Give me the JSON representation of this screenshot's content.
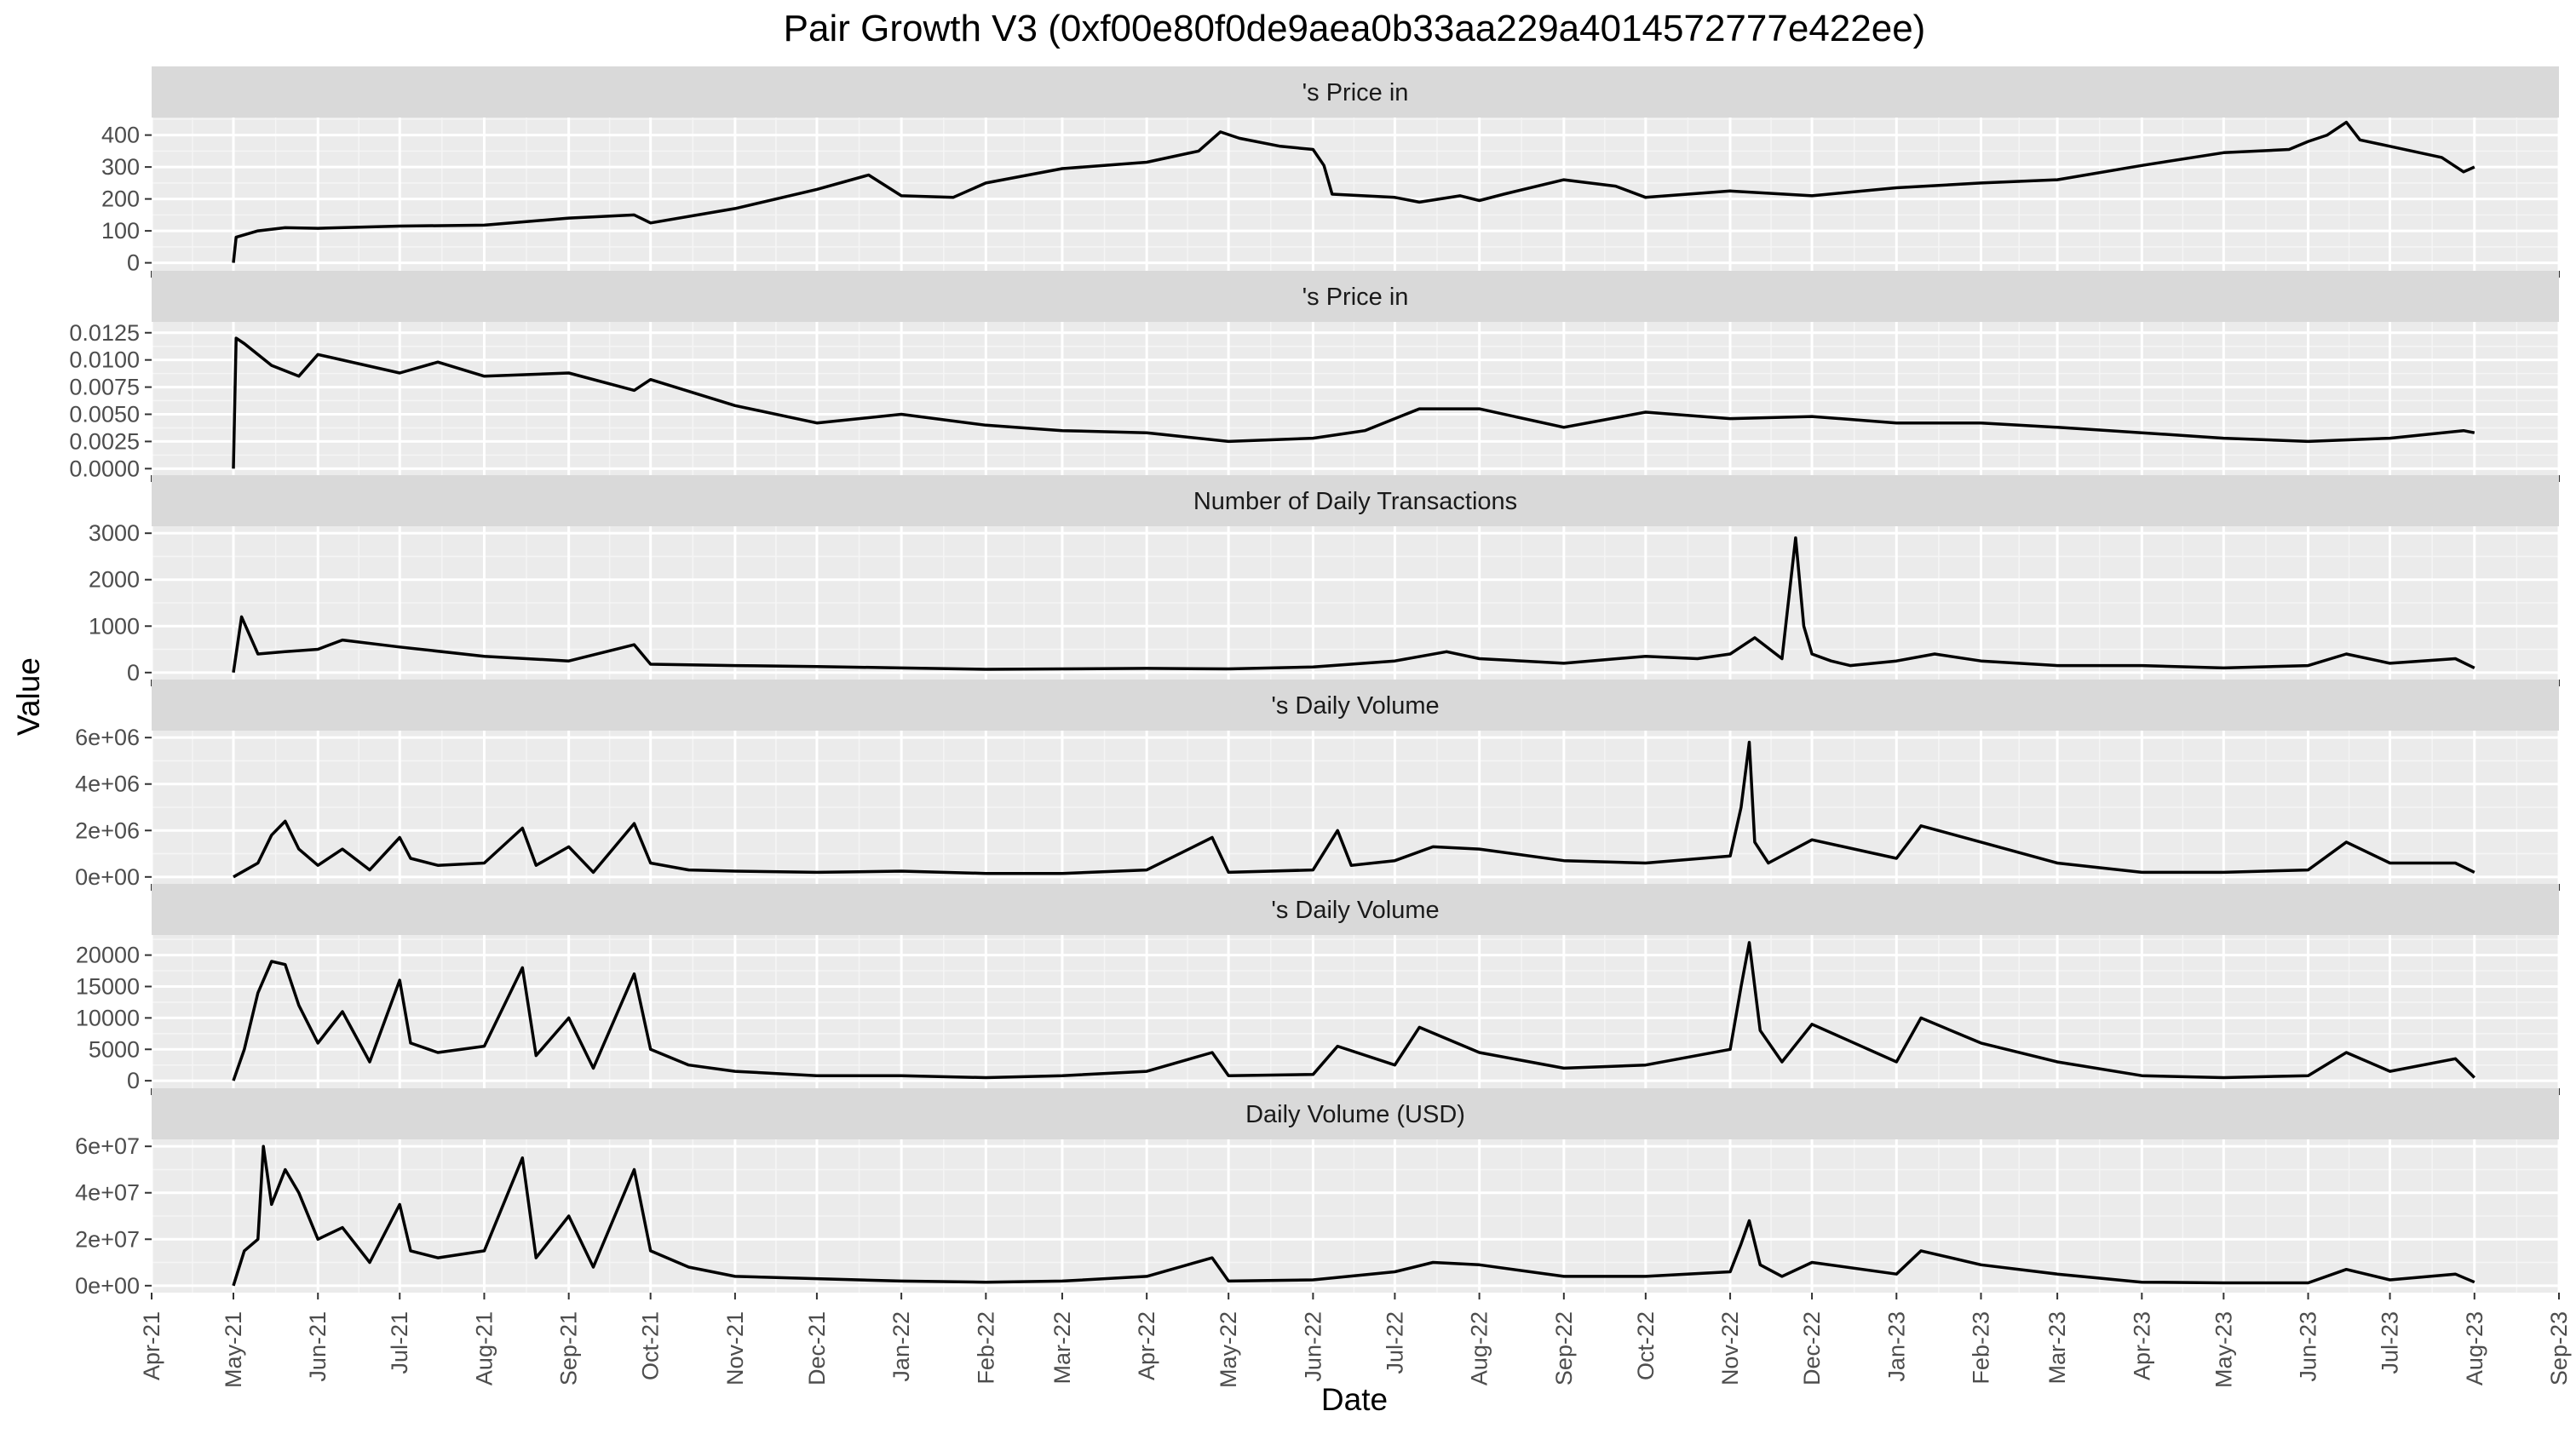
{
  "chart_data": {
    "type": "line",
    "title": "Pair Growth V3 (0xf00e80f0de9aea0b33aa229a4014572777e422ee)",
    "xlabel": "Date",
    "ylabel": "Value",
    "xlim": [
      "2021-04-01",
      "2023-09-01"
    ],
    "x_ticks": [
      "Apr-21",
      "May-21",
      "Jun-21",
      "Jul-21",
      "Aug-21",
      "Sep-21",
      "Oct-21",
      "Nov-21",
      "Dec-21",
      "Jan-22",
      "Feb-22",
      "Mar-22",
      "Apr-22",
      "May-22",
      "Jun-22",
      "Jul-22",
      "Aug-22",
      "Sep-22",
      "Oct-22",
      "Nov-22",
      "Dec-22",
      "Jan-23",
      "Feb-23",
      "Mar-23",
      "Apr-23",
      "May-23",
      "Jun-23",
      "Jul-23",
      "Aug-23",
      "Sep-23"
    ],
    "x_tick_dates": [
      "2021-04-01",
      "2021-05-01",
      "2021-06-01",
      "2021-07-01",
      "2021-08-01",
      "2021-09-01",
      "2021-10-01",
      "2021-11-01",
      "2021-12-01",
      "2022-01-01",
      "2022-02-01",
      "2022-03-01",
      "2022-04-01",
      "2022-05-01",
      "2022-06-01",
      "2022-07-01",
      "2022-08-01",
      "2022-09-01",
      "2022-10-01",
      "2022-11-01",
      "2022-12-01",
      "2023-01-01",
      "2023-02-01",
      "2023-03-01",
      "2023-04-01",
      "2023-05-01",
      "2023-06-01",
      "2023-07-01",
      "2023-08-01",
      "2023-09-01"
    ],
    "grid": true,
    "line_color": "#000000",
    "panel_bg": "#ebebeb",
    "strip_bg": "#d9d9d9",
    "panels": [
      {
        "label": "'s Price in",
        "ylim": [
          -25,
          455
        ],
        "y_ticks": [
          0,
          100,
          200,
          300,
          400
        ],
        "y_tick_labels": [
          "0",
          "100",
          "200",
          "300",
          "400"
        ],
        "series": {
          "x": [
            "2021-05-01",
            "2021-05-02",
            "2021-05-10",
            "2021-05-20",
            "2021-06-01",
            "2021-07-01",
            "2021-08-01",
            "2021-09-01",
            "2021-09-25",
            "2021-10-01",
            "2021-11-01",
            "2021-12-01",
            "2021-12-20",
            "2022-01-01",
            "2022-01-20",
            "2022-02-01",
            "2022-03-01",
            "2022-04-01",
            "2022-04-20",
            "2022-04-28",
            "2022-05-05",
            "2022-05-20",
            "2022-06-01",
            "2022-06-05",
            "2022-06-08",
            "2022-07-01",
            "2022-07-10",
            "2022-07-25",
            "2022-08-01",
            "2022-08-10",
            "2022-09-01",
            "2022-09-20",
            "2022-10-01",
            "2022-11-01",
            "2022-12-01",
            "2023-01-01",
            "2023-02-01",
            "2023-03-01",
            "2023-04-01",
            "2023-05-01",
            "2023-05-25",
            "2023-06-01",
            "2023-06-08",
            "2023-06-15",
            "2023-06-20",
            "2023-07-01",
            "2023-07-20",
            "2023-07-28",
            "2023-08-01"
          ],
          "y": [
            0,
            80,
            100,
            110,
            108,
            115,
            118,
            140,
            150,
            125,
            170,
            230,
            275,
            210,
            205,
            250,
            295,
            315,
            350,
            410,
            390,
            365,
            355,
            305,
            215,
            205,
            190,
            210,
            195,
            215,
            260,
            240,
            205,
            225,
            210,
            235,
            250,
            260,
            305,
            345,
            355,
            380,
            400,
            440,
            385,
            365,
            330,
            285,
            300
          ]
        }
      },
      {
        "label": "'s Price in",
        "ylim": [
          -0.0006,
          0.0135
        ],
        "y_ticks": [
          0,
          0.0025,
          0.005,
          0.0075,
          0.01,
          0.0125
        ],
        "y_tick_labels": [
          "0.0000",
          "0.0025",
          "0.0050",
          "0.0075",
          "0.0100",
          "0.0125"
        ],
        "series": {
          "x": [
            "2021-05-01",
            "2021-05-02",
            "2021-05-05",
            "2021-05-15",
            "2021-05-25",
            "2021-06-01",
            "2021-07-01",
            "2021-07-15",
            "2021-08-01",
            "2021-09-01",
            "2021-09-25",
            "2021-10-01",
            "2021-11-01",
            "2021-12-01",
            "2022-01-01",
            "2022-02-01",
            "2022-03-01",
            "2022-04-01",
            "2022-05-01",
            "2022-06-01",
            "2022-06-20",
            "2022-07-10",
            "2022-08-01",
            "2022-09-01",
            "2022-10-01",
            "2022-11-01",
            "2022-12-01",
            "2023-01-01",
            "2023-02-01",
            "2023-03-01",
            "2023-04-01",
            "2023-05-01",
            "2023-06-01",
            "2023-07-01",
            "2023-07-28",
            "2023-08-01"
          ],
          "y": [
            0,
            0.012,
            0.0115,
            0.0095,
            0.0085,
            0.0105,
            0.0088,
            0.0098,
            0.0085,
            0.0088,
            0.0072,
            0.0082,
            0.0058,
            0.0042,
            0.005,
            0.004,
            0.0035,
            0.0033,
            0.0025,
            0.0028,
            0.0035,
            0.0055,
            0.0055,
            0.0038,
            0.0052,
            0.0046,
            0.0048,
            0.0042,
            0.0042,
            0.0038,
            0.0033,
            0.0028,
            0.0025,
            0.0028,
            0.0035,
            0.0033
          ]
        }
      },
      {
        "label": "Number of Daily Transactions",
        "ylim": [
          -150,
          3150
        ],
        "y_ticks": [
          0,
          1000,
          2000,
          3000
        ],
        "y_tick_labels": [
          "0",
          "1000",
          "2000",
          "3000"
        ],
        "series": {
          "x": [
            "2021-05-01",
            "2021-05-04",
            "2021-05-10",
            "2021-05-20",
            "2021-06-01",
            "2021-06-10",
            "2021-07-01",
            "2021-08-01",
            "2021-09-01",
            "2021-09-25",
            "2021-10-01",
            "2021-11-01",
            "2021-12-01",
            "2022-01-01",
            "2022-02-01",
            "2022-03-01",
            "2022-04-01",
            "2022-05-01",
            "2022-06-01",
            "2022-07-01",
            "2022-07-20",
            "2022-08-01",
            "2022-09-01",
            "2022-10-01",
            "2022-10-20",
            "2022-11-01",
            "2022-11-10",
            "2022-11-20",
            "2022-11-25",
            "2022-11-28",
            "2022-12-01",
            "2022-12-08",
            "2022-12-15",
            "2023-01-01",
            "2023-01-15",
            "2023-02-01",
            "2023-03-01",
            "2023-04-01",
            "2023-05-01",
            "2023-06-01",
            "2023-06-15",
            "2023-07-01",
            "2023-07-25",
            "2023-08-01"
          ],
          "y": [
            0,
            1200,
            400,
            450,
            500,
            700,
            550,
            350,
            250,
            600,
            180,
            150,
            130,
            100,
            70,
            80,
            90,
            80,
            120,
            250,
            450,
            300,
            200,
            350,
            300,
            400,
            750,
            300,
            2900,
            1000,
            400,
            250,
            150,
            250,
            400,
            250,
            150,
            150,
            100,
            150,
            400,
            200,
            300,
            100
          ]
        }
      },
      {
        "label": "'s Daily Volume",
        "ylim": [
          -300000,
          6300000
        ],
        "y_ticks": [
          0,
          2000000,
          4000000,
          6000000
        ],
        "y_tick_labels": [
          "0e+00",
          "2e+06",
          "4e+06",
          "6e+06"
        ],
        "series": {
          "x": [
            "2021-05-01",
            "2021-05-10",
            "2021-05-15",
            "2021-05-20",
            "2021-05-25",
            "2021-06-01",
            "2021-06-10",
            "2021-06-20",
            "2021-07-01",
            "2021-07-05",
            "2021-07-15",
            "2021-08-01",
            "2021-08-15",
            "2021-08-20",
            "2021-09-01",
            "2021-09-10",
            "2021-09-25",
            "2021-10-01",
            "2021-10-15",
            "2021-11-01",
            "2021-12-01",
            "2022-01-01",
            "2022-02-01",
            "2022-03-01",
            "2022-04-01",
            "2022-04-25",
            "2022-05-01",
            "2022-06-01",
            "2022-06-10",
            "2022-06-15",
            "2022-07-01",
            "2022-07-15",
            "2022-08-01",
            "2022-09-01",
            "2022-10-01",
            "2022-11-01",
            "2022-11-05",
            "2022-11-08",
            "2022-11-10",
            "2022-11-15",
            "2022-12-01",
            "2023-01-01",
            "2023-01-10",
            "2023-02-01",
            "2023-03-01",
            "2023-04-01",
            "2023-05-01",
            "2023-06-01",
            "2023-06-15",
            "2023-07-01",
            "2023-07-25",
            "2023-08-01"
          ],
          "y": [
            0,
            600000,
            1800000,
            2400000,
            1200000,
            500000,
            1200000,
            300000,
            1700000,
            800000,
            500000,
            600000,
            2100000,
            500000,
            1300000,
            200000,
            2300000,
            600000,
            300000,
            250000,
            200000,
            250000,
            150000,
            150000,
            300000,
            1700000,
            200000,
            300000,
            2000000,
            500000,
            700000,
            1300000,
            1200000,
            700000,
            600000,
            900000,
            3000000,
            5800000,
            1500000,
            600000,
            1600000,
            800000,
            2200000,
            1500000,
            600000,
            200000,
            200000,
            300000,
            1500000,
            600000,
            600000,
            200000
          ]
        }
      },
      {
        "label": "'s Daily Volume",
        "ylim": [
          -1200,
          23200
        ],
        "y_ticks": [
          0,
          5000,
          10000,
          15000,
          20000
        ],
        "y_tick_labels": [
          "0",
          "5000",
          "10000",
          "15000",
          "20000"
        ],
        "series": {
          "x": [
            "2021-05-01",
            "2021-05-05",
            "2021-05-10",
            "2021-05-15",
            "2021-05-20",
            "2021-05-25",
            "2021-06-01",
            "2021-06-10",
            "2021-06-20",
            "2021-07-01",
            "2021-07-05",
            "2021-07-15",
            "2021-08-01",
            "2021-08-15",
            "2021-08-20",
            "2021-09-01",
            "2021-09-10",
            "2021-09-25",
            "2021-10-01",
            "2021-10-15",
            "2021-11-01",
            "2021-12-01",
            "2022-01-01",
            "2022-02-01",
            "2022-03-01",
            "2022-04-01",
            "2022-04-25",
            "2022-05-01",
            "2022-06-01",
            "2022-06-10",
            "2022-07-01",
            "2022-07-10",
            "2022-08-01",
            "2022-09-01",
            "2022-10-01",
            "2022-11-01",
            "2022-11-05",
            "2022-11-08",
            "2022-11-12",
            "2022-11-20",
            "2022-12-01",
            "2023-01-01",
            "2023-01-10",
            "2023-02-01",
            "2023-03-01",
            "2023-04-01",
            "2023-05-01",
            "2023-06-01",
            "2023-06-15",
            "2023-07-01",
            "2023-07-25",
            "2023-08-01"
          ],
          "y": [
            0,
            5000,
            14000,
            19000,
            18500,
            12000,
            6000,
            11000,
            3000,
            16000,
            6000,
            4500,
            5500,
            18000,
            4000,
            10000,
            2000,
            17000,
            5000,
            2500,
            1500,
            800,
            800,
            500,
            800,
            1500,
            4500,
            800,
            1000,
            5500,
            2500,
            8500,
            4500,
            2000,
            2500,
            5000,
            15000,
            22000,
            8000,
            3000,
            9000,
            3000,
            10000,
            6000,
            3000,
            800,
            500,
            800,
            4500,
            1500,
            3500,
            500
          ]
        }
      },
      {
        "label": "Daily Volume (USD)",
        "ylim": [
          -3000000,
          63000000
        ],
        "y_ticks": [
          0,
          20000000,
          40000000,
          60000000
        ],
        "y_tick_labels": [
          "0e+00",
          "2e+07",
          "4e+07",
          "6e+07"
        ],
        "series": {
          "x": [
            "2021-05-01",
            "2021-05-05",
            "2021-05-10",
            "2021-05-12",
            "2021-05-15",
            "2021-05-20",
            "2021-05-25",
            "2021-06-01",
            "2021-06-10",
            "2021-06-20",
            "2021-07-01",
            "2021-07-05",
            "2021-07-15",
            "2021-08-01",
            "2021-08-15",
            "2021-08-20",
            "2021-09-01",
            "2021-09-10",
            "2021-09-25",
            "2021-10-01",
            "2021-10-15",
            "2021-11-01",
            "2021-12-01",
            "2022-01-01",
            "2022-02-01",
            "2022-03-01",
            "2022-04-01",
            "2022-04-25",
            "2022-05-01",
            "2022-06-01",
            "2022-07-01",
            "2022-07-15",
            "2022-08-01",
            "2022-09-01",
            "2022-10-01",
            "2022-11-01",
            "2022-11-05",
            "2022-11-08",
            "2022-11-12",
            "2022-11-20",
            "2022-12-01",
            "2023-01-01",
            "2023-01-10",
            "2023-02-01",
            "2023-03-01",
            "2023-04-01",
            "2023-05-01",
            "2023-06-01",
            "2023-06-15",
            "2023-07-01",
            "2023-07-25",
            "2023-08-01"
          ],
          "y": [
            0,
            15000000,
            20000000,
            60000000,
            35000000,
            50000000,
            40000000,
            20000000,
            25000000,
            10000000,
            35000000,
            15000000,
            12000000,
            15000000,
            55000000,
            12000000,
            30000000,
            8000000,
            50000000,
            15000000,
            8000000,
            4000000,
            3000000,
            2000000,
            1500000,
            2000000,
            4000000,
            12000000,
            2000000,
            2500000,
            6000000,
            10000000,
            9000000,
            4000000,
            4000000,
            6000000,
            18000000,
            28000000,
            9000000,
            4000000,
            10000000,
            5000000,
            15000000,
            9000000,
            5000000,
            1500000,
            1200000,
            1200000,
            7000000,
            2500000,
            5000000,
            1500000
          ]
        }
      }
    ]
  }
}
